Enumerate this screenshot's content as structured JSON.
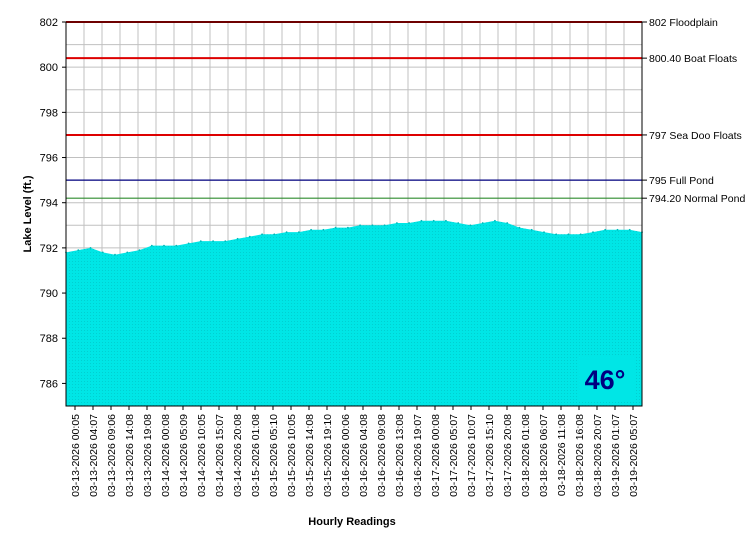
{
  "chart_data": {
    "type": "area",
    "xlabel": "Hourly Readings",
    "ylabel": "Lake Level (ft.)",
    "ylim": [
      785,
      802
    ],
    "yticks": [
      786,
      788,
      790,
      792,
      794,
      796,
      798,
      800,
      802
    ],
    "grid": true,
    "fill_color": "#00e6e6",
    "x_tick_labels": [
      "03-13-2026 00:05",
      "03-13-2026 04:07",
      "03-13-2026 09:06",
      "03-13-2026 14:08",
      "03-13-2026 19:08",
      "03-14-2026 00:08",
      "03-14-2026 05:09",
      "03-14-2026 10:05",
      "03-14-2026 15:07",
      "03-14-2026 20:08",
      "03-15-2026 01:08",
      "03-15-2026 05:10",
      "03-15-2026 10:05",
      "03-15-2026 14:08",
      "03-15-2026 19:10",
      "03-16-2026 00:06",
      "03-16-2026 04:08",
      "03-16-2026 09:08",
      "03-16-2026 13:08",
      "03-16-2026 19:07",
      "03-17-2026 00:08",
      "03-17-2026 05:07",
      "03-17-2026 10:07",
      "03-17-2026 15:10",
      "03-17-2026 20:08",
      "03-18-2026 01:08",
      "03-18-2026 06:07",
      "03-18-2026 11:08",
      "03-18-2026 16:08",
      "03-18-2026 20:07",
      "03-19-2026 01:07",
      "03-19-2026 05:07"
    ],
    "series": [
      {
        "values": [
          791.8,
          791.9,
          792.0,
          791.8,
          791.7,
          791.8,
          791.9,
          792.1,
          792.1,
          792.1,
          792.2,
          792.3,
          792.3,
          792.3,
          792.4,
          792.5,
          792.6,
          792.6,
          792.7,
          792.7,
          792.8,
          792.8,
          792.9,
          792.9,
          793.0,
          793.0,
          793.0,
          793.1,
          793.1,
          793.2,
          793.2,
          793.2,
          793.1,
          793.0,
          793.1,
          793.2,
          793.1,
          792.9,
          792.8,
          792.7,
          792.6,
          792.6,
          792.6,
          792.7,
          792.8,
          792.8,
          792.8,
          792.7
        ]
      }
    ],
    "reference_lines": [
      {
        "value": 802,
        "label": "802 Floodplain",
        "color": "#dd0000"
      },
      {
        "value": 800.4,
        "label": "800.40 Boat Floats",
        "color": "#dd0000"
      },
      {
        "value": 797,
        "label": "797 Sea Doo Floats",
        "color": "#dd0000"
      },
      {
        "value": 795,
        "label": "795 Full Pond",
        "color": "#000080"
      },
      {
        "value": 794.2,
        "label": "794.20 Normal Pond",
        "color": "#2e8b2e"
      }
    ],
    "temperature": "46°",
    "temperature_color": "#000080"
  }
}
